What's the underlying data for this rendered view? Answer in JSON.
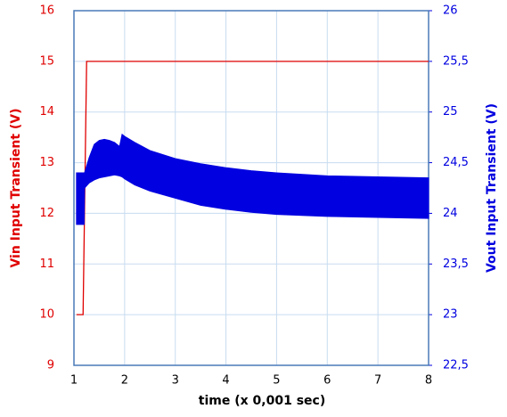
{
  "chart_data": {
    "type": "line",
    "xlabel": "time  (x 0,001 sec)",
    "ylabel": "Vin Input Transient (V)",
    "y2label": "Vout Input Transient (V)",
    "xlim": [
      1,
      8
    ],
    "xticks": [
      1,
      2,
      3,
      4,
      5,
      6,
      7,
      8
    ],
    "ylim": [
      9,
      16
    ],
    "yticks": [
      9,
      10,
      11,
      12,
      13,
      14,
      15,
      16
    ],
    "y2lim": [
      22.5,
      26
    ],
    "y2ticks": [
      {
        "value": 22.5,
        "label": "22,5"
      },
      23,
      {
        "value": 23.5,
        "label": "23,5"
      },
      24,
      {
        "value": 24.5,
        "label": "24,5"
      },
      25,
      {
        "value": 25.5,
        "label": "25,5"
      },
      26
    ],
    "grid": true,
    "series": [
      {
        "color": "#e00000",
        "x": [
          1.05,
          1.18,
          1.25,
          8
        ],
        "values": [
          10,
          10,
          15,
          15
        ]
      },
      {
        "color": "#0000e0",
        "axis": "y2",
        "x": [
          1.05,
          1.1,
          1.2,
          1.21,
          1.3,
          1.4,
          1.5,
          1.6,
          1.7,
          1.8,
          1.9,
          1.95,
          2.0,
          2.2,
          2.5,
          3,
          3.5,
          4,
          4.5,
          5,
          6,
          7,
          8
        ],
        "high": [
          24.4,
          24.4,
          24.4,
          24.4,
          24.55,
          24.68,
          24.72,
          24.73,
          24.72,
          24.7,
          24.66,
          24.78,
          24.76,
          24.7,
          24.62,
          24.54,
          24.49,
          24.45,
          24.42,
          24.4,
          24.37,
          24.36,
          24.35
        ],
        "low": [
          23.89,
          23.89,
          23.89,
          24.25,
          24.3,
          24.33,
          24.35,
          24.36,
          24.37,
          24.38,
          24.37,
          24.36,
          24.34,
          24.28,
          24.22,
          24.15,
          24.08,
          24.04,
          24.01,
          23.99,
          23.97,
          23.96,
          23.95
        ]
      }
    ]
  }
}
